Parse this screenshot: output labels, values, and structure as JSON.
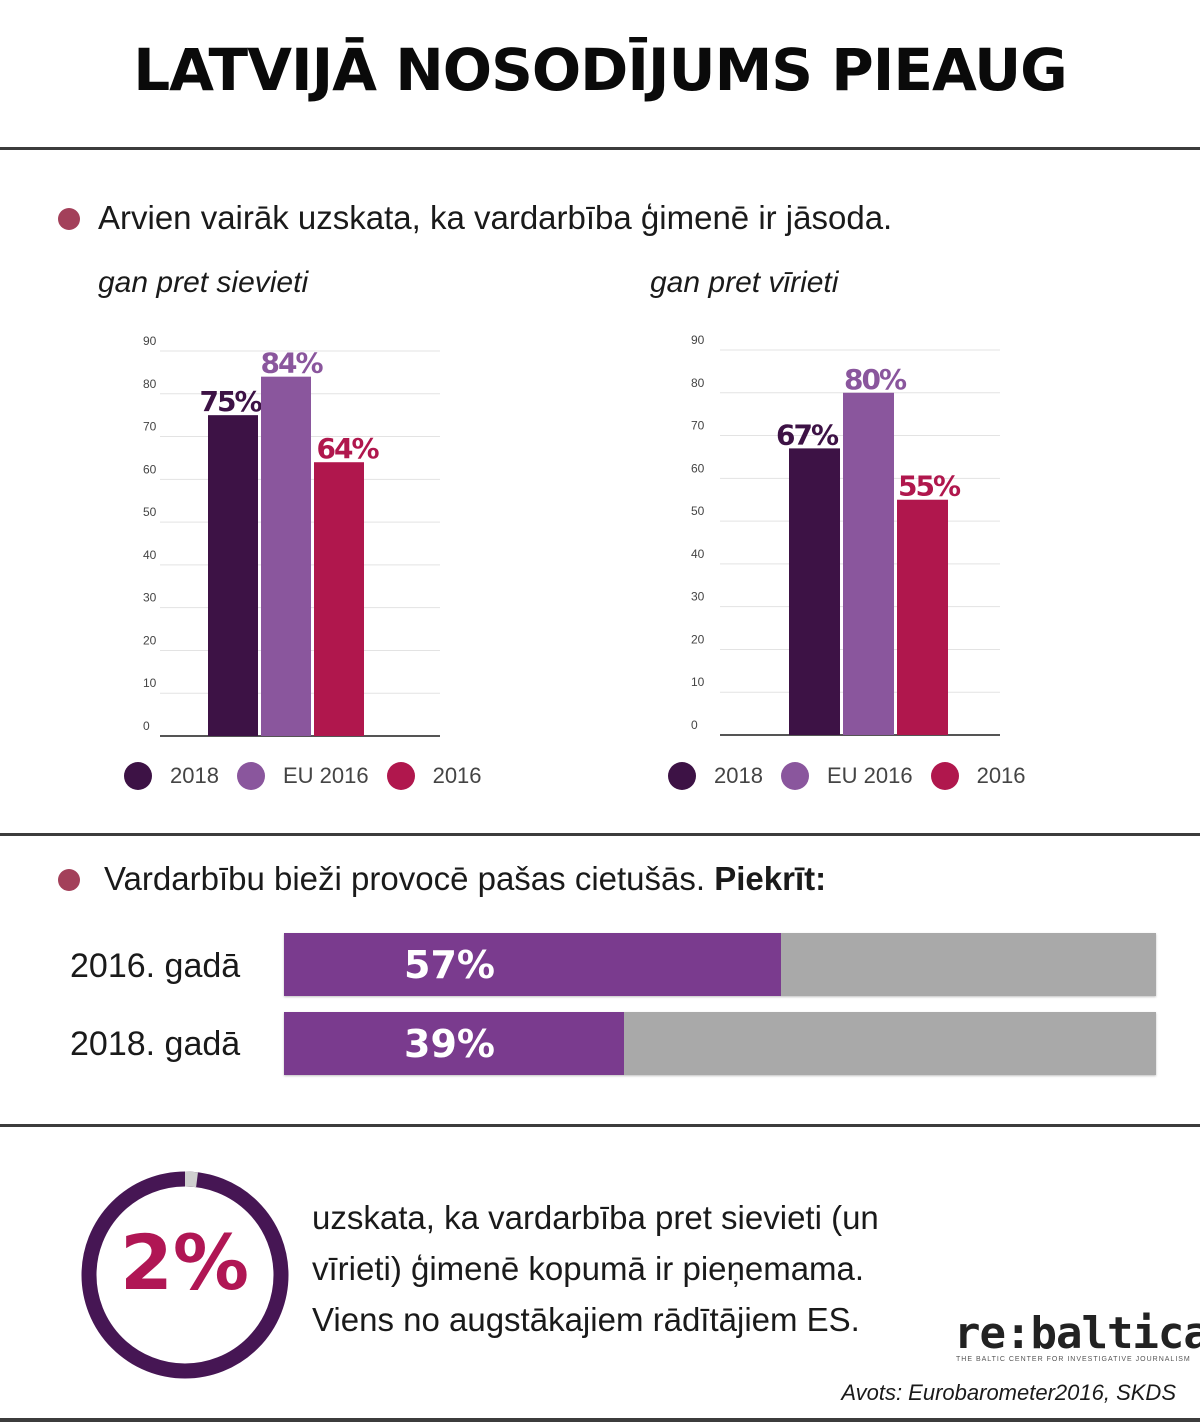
{
  "title": "LATVIJĀ NOSODĪJUMS PIEAUG",
  "section1": {
    "headline": "Arvien vairāk uzskata, ka vardarbība ģimenē ir jāsoda.",
    "subtitle_left": "gan pret sievieti",
    "subtitle_right": "gan pret vīrieti"
  },
  "chart_data": [
    {
      "type": "bar",
      "title": "gan pret sievieti",
      "categories": [
        "2018",
        "EU 2016",
        "2016"
      ],
      "values": [
        75,
        84,
        64
      ],
      "value_labels": [
        "75%",
        "84%",
        "64%"
      ],
      "colors": [
        "#3d1245",
        "#8a569d",
        "#b0174d"
      ],
      "ylim": [
        0,
        90
      ],
      "yticks": [
        "0",
        "10",
        "20",
        "30",
        "40",
        "50",
        "60",
        "70",
        "80",
        "90"
      ],
      "grid": true,
      "legend": [
        "2018",
        "EU 2016",
        "2016"
      ],
      "legend_position": "bottom"
    },
    {
      "type": "bar",
      "title": "gan pret vīrieti",
      "categories": [
        "2018",
        "EU 2016",
        "2016"
      ],
      "values": [
        67,
        80,
        55
      ],
      "value_labels": [
        "67%",
        "80%",
        "55%"
      ],
      "colors": [
        "#3d1245",
        "#8a569d",
        "#b0174d"
      ],
      "ylim": [
        0,
        90
      ],
      "yticks": [
        "0",
        "10",
        "20",
        "30",
        "40",
        "50",
        "60",
        "70",
        "80",
        "90"
      ],
      "grid": true,
      "legend": [
        "2018",
        "EU 2016",
        "2016"
      ],
      "legend_position": "bottom"
    },
    {
      "type": "bar",
      "orientation": "horizontal",
      "title": "Vardarbību bieži provocē pašas cietušās. Piekrīt:",
      "categories": [
        "2016. gadā",
        "2018. gadā"
      ],
      "values": [
        57,
        39
      ],
      "value_labels": [
        "57%",
        "39%"
      ],
      "xlim": [
        0,
        100
      ],
      "colors": [
        "#7a3b8e",
        "#a9a9a9"
      ]
    }
  ],
  "legend": {
    "items": [
      {
        "label": "2018",
        "color": "#3d1245"
      },
      {
        "label": "EU 2016",
        "color": "#8a569d"
      },
      {
        "label": "2016",
        "color": "#b0174d"
      }
    ]
  },
  "section2": {
    "headline_main": "Vardarbību bieži provocē pašas cietušās.",
    "headline_bold": "Piekrīt:",
    "rows": [
      {
        "label": "2016. gadā",
        "value": 57,
        "value_label": "57%"
      },
      {
        "label": "2018. gadā",
        "value": 39,
        "value_label": "39%"
      }
    ]
  },
  "section3": {
    "donut_value": 2,
    "donut_label": "2%",
    "donut_color": "#461654",
    "text": "uzskata, ka vardarbība pret sievieti (un vīrieti) ģimenē kopumā ir pieņemama. Viens no augstākajiem rādītājiem ES."
  },
  "logo": {
    "name": "re:baltica",
    "tagline": "THE BALTIC CENTER FOR INVESTIGATIVE JOURNALISM"
  },
  "source": "Avots: Eurobarometer2016, SKDS"
}
